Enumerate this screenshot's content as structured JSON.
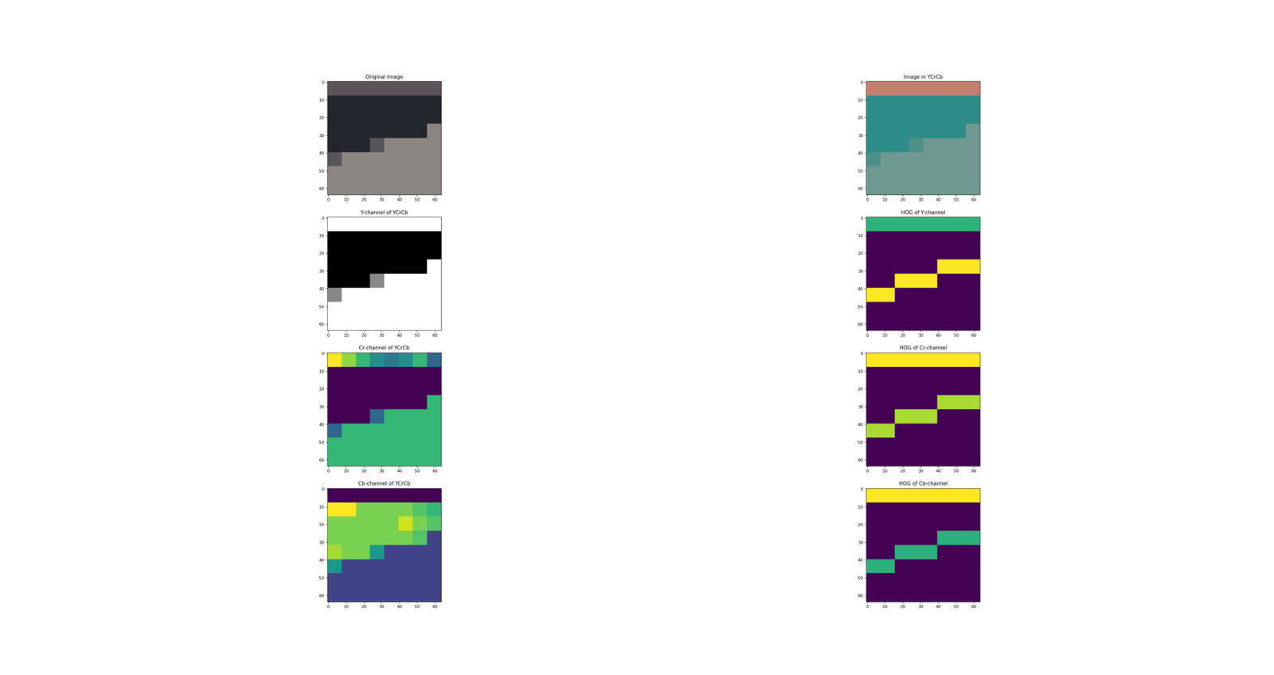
{
  "chart_data": [
    {
      "type": "image",
      "title": "Original Image",
      "xlim": [
        -0.5,
        63.5
      ],
      "ylim": [
        63.5,
        -0.5
      ],
      "xticks": [
        0,
        10,
        20,
        30,
        40,
        50,
        60
      ],
      "yticks": [
        0,
        10,
        20,
        30,
        40,
        50,
        60
      ],
      "cells": [
        [
          "#5c5458",
          "#5c5458",
          "#5c5458",
          "#5c5458",
          "#5c5458",
          "#5c5458",
          "#5c5458",
          "#5c5458"
        ],
        [
          "#23272d",
          "#23272d",
          "#23272d",
          "#23272d",
          "#23272d",
          "#23272d",
          "#23272d",
          "#23272d"
        ],
        [
          "#23272d",
          "#23272d",
          "#23272d",
          "#23272d",
          "#23272d",
          "#23272d",
          "#23272d",
          "#23272d"
        ],
        [
          "#23272d",
          "#23272d",
          "#23272d",
          "#23272d",
          "#23272d",
          "#23272d",
          "#23272d",
          "#8c8682"
        ],
        [
          "#23272d",
          "#23272d",
          "#23272d",
          "#56565a",
          "#8c8682",
          "#8c8682",
          "#8c8682",
          "#8c8682"
        ],
        [
          "#56565a",
          "#8c8682",
          "#8c8682",
          "#8c8682",
          "#8c8682",
          "#8c8682",
          "#8c8682",
          "#8c8682"
        ],
        [
          "#8c8682",
          "#8c8682",
          "#8c8682",
          "#8c8682",
          "#8c8682",
          "#8c8682",
          "#8c8682",
          "#8c8682"
        ],
        [
          "#8c8682",
          "#8c8682",
          "#8c8682",
          "#8c8682",
          "#8c8682",
          "#8c8682",
          "#8c8682",
          "#8c8682"
        ]
      ]
    },
    {
      "type": "image",
      "title": "Image in YCrCb",
      "xlim": [
        -0.5,
        63.5
      ],
      "ylim": [
        63.5,
        -0.5
      ],
      "xticks": [
        0,
        10,
        20,
        30,
        40,
        50,
        60
      ],
      "yticks": [
        0,
        10,
        20,
        30,
        40,
        50,
        60
      ],
      "cells": [
        [
          "#c4806e",
          "#c4806e",
          "#c4806e",
          "#c4806e",
          "#c4806e",
          "#c4806e",
          "#c4806e",
          "#c4806e"
        ],
        [
          "#2e8c88",
          "#2e8c88",
          "#2e8c88",
          "#2e8c88",
          "#2e8c88",
          "#2e8c88",
          "#2e8c88",
          "#2e8c88"
        ],
        [
          "#2e8c88",
          "#2e8c88",
          "#2e8c88",
          "#2e8c88",
          "#2e8c88",
          "#2e8c88",
          "#2e8c88",
          "#2e8c88"
        ],
        [
          "#2e8c88",
          "#2e8c88",
          "#2e8c88",
          "#2e8c88",
          "#2e8c88",
          "#2e8c88",
          "#2e8c88",
          "#6e9890"
        ],
        [
          "#2e8c88",
          "#2e8c88",
          "#2e8c88",
          "#4c9088",
          "#6e9890",
          "#6e9890",
          "#6e9890",
          "#6e9890"
        ],
        [
          "#4c9088",
          "#6e9890",
          "#6e9890",
          "#6e9890",
          "#6e9890",
          "#6e9890",
          "#6e9890",
          "#6e9890"
        ],
        [
          "#6e9890",
          "#6e9890",
          "#6e9890",
          "#6e9890",
          "#6e9890",
          "#6e9890",
          "#6e9890",
          "#6e9890"
        ],
        [
          "#6e9890",
          "#6e9890",
          "#6e9890",
          "#6e9890",
          "#6e9890",
          "#6e9890",
          "#6e9890",
          "#6e9890"
        ]
      ]
    },
    {
      "type": "heatmap",
      "title": "Y-channel of YCrCb",
      "color": "gray",
      "xlim": [
        -0.5,
        63.5
      ],
      "ylim": [
        63.5,
        -0.5
      ],
      "xticks": [
        0,
        10,
        20,
        30,
        40,
        50,
        60
      ],
      "yticks": [
        0,
        10,
        20,
        30,
        40,
        50,
        60
      ],
      "cells": [
        [
          0.55,
          0.55,
          0.55,
          0.55,
          0.55,
          0.55,
          0.55,
          0.55
        ],
        [
          0.12,
          0.12,
          0.12,
          0.12,
          0.12,
          0.12,
          0.12,
          0.12
        ],
        [
          0.12,
          0.12,
          0.12,
          0.12,
          0.12,
          0.12,
          0.12,
          0.12
        ],
        [
          0.12,
          0.12,
          0.12,
          0.12,
          0.12,
          0.12,
          0.12,
          0.55
        ],
        [
          0.12,
          0.12,
          0.12,
          0.35,
          0.55,
          0.55,
          0.55,
          0.55
        ],
        [
          0.35,
          0.55,
          0.55,
          0.55,
          0.55,
          0.55,
          0.55,
          0.55
        ],
        [
          0.55,
          0.55,
          0.55,
          0.55,
          0.55,
          0.55,
          0.55,
          0.55
        ],
        [
          0.55,
          0.55,
          0.55,
          0.55,
          0.55,
          0.55,
          0.55,
          0.55
        ]
      ]
    },
    {
      "type": "heatmap",
      "title": "HOG of Y-channel",
      "color": "viridis",
      "xlim": [
        -0.5,
        63.5
      ],
      "ylim": [
        63.5,
        -0.5
      ],
      "xticks": [
        0,
        10,
        20,
        30,
        40,
        50,
        60
      ],
      "yticks": [
        0,
        10,
        20,
        30,
        40,
        50,
        60
      ],
      "cells": [
        [
          0.6,
          0.6,
          0.6,
          0.6,
          0.6,
          0.6,
          0.6,
          0.6
        ],
        [
          0.05,
          0.05,
          0.05,
          0.05,
          0.05,
          0.05,
          0.05,
          0.05
        ],
        [
          0.05,
          0.05,
          0.05,
          0.05,
          0.05,
          0.05,
          0.05,
          0.05
        ],
        [
          0.05,
          0.05,
          0.05,
          0.05,
          0.05,
          0.9,
          0.9,
          0.9
        ],
        [
          0.05,
          0.05,
          0.9,
          0.9,
          0.9,
          0.05,
          0.05,
          0.05
        ],
        [
          0.9,
          0.9,
          0.05,
          0.05,
          0.05,
          0.05,
          0.05,
          0.05
        ],
        [
          0.05,
          0.05,
          0.05,
          0.05,
          0.05,
          0.05,
          0.05,
          0.05
        ],
        [
          0.05,
          0.05,
          0.05,
          0.05,
          0.05,
          0.05,
          0.05,
          0.05
        ]
      ]
    },
    {
      "type": "heatmap",
      "title": "Cr-channel of YCrCb",
      "color": "viridis",
      "xlim": [
        -0.5,
        63.5
      ],
      "ylim": [
        63.5,
        -0.5
      ],
      "xticks": [
        0,
        10,
        20,
        30,
        40,
        50,
        60
      ],
      "yticks": [
        0,
        10,
        20,
        30,
        40,
        50,
        60
      ],
      "cells": [
        [
          0.8,
          0.7,
          0.6,
          0.5,
          0.45,
          0.5,
          0.6,
          0.4
        ],
        [
          0.2,
          0.2,
          0.2,
          0.2,
          0.2,
          0.2,
          0.2,
          0.2
        ],
        [
          0.2,
          0.2,
          0.2,
          0.2,
          0.2,
          0.2,
          0.2,
          0.2
        ],
        [
          0.2,
          0.2,
          0.2,
          0.2,
          0.2,
          0.2,
          0.2,
          0.6
        ],
        [
          0.2,
          0.2,
          0.2,
          0.4,
          0.6,
          0.6,
          0.6,
          0.6
        ],
        [
          0.4,
          0.6,
          0.6,
          0.6,
          0.6,
          0.6,
          0.6,
          0.6
        ],
        [
          0.6,
          0.6,
          0.6,
          0.6,
          0.6,
          0.6,
          0.6,
          0.6
        ],
        [
          0.6,
          0.6,
          0.6,
          0.6,
          0.6,
          0.6,
          0.6,
          0.6
        ]
      ]
    },
    {
      "type": "heatmap",
      "title": "HOG of Cr-channel",
      "color": "viridis",
      "xlim": [
        -0.5,
        63.5
      ],
      "ylim": [
        63.5,
        -0.5
      ],
      "xticks": [
        0,
        10,
        20,
        30,
        40,
        50,
        60
      ],
      "yticks": [
        0,
        10,
        20,
        30,
        40,
        50,
        60
      ],
      "cells": [
        [
          0.5,
          0.5,
          0.5,
          0.5,
          0.5,
          0.5,
          0.5,
          0.5
        ],
        [
          0.1,
          0.1,
          0.1,
          0.1,
          0.1,
          0.1,
          0.1,
          0.1
        ],
        [
          0.1,
          0.1,
          0.1,
          0.1,
          0.1,
          0.1,
          0.1,
          0.1
        ],
        [
          0.1,
          0.1,
          0.1,
          0.1,
          0.1,
          0.45,
          0.45,
          0.45
        ],
        [
          0.1,
          0.1,
          0.45,
          0.45,
          0.45,
          0.1,
          0.1,
          0.1
        ],
        [
          0.45,
          0.45,
          0.1,
          0.1,
          0.1,
          0.1,
          0.1,
          0.1
        ],
        [
          0.1,
          0.1,
          0.1,
          0.1,
          0.1,
          0.1,
          0.1,
          0.1
        ],
        [
          0.1,
          0.1,
          0.1,
          0.1,
          0.1,
          0.1,
          0.1,
          0.1
        ]
      ]
    },
    {
      "type": "heatmap",
      "title": "Cb-channel of YCrCb",
      "color": "viridis",
      "xlim": [
        -0.5,
        63.5
      ],
      "ylim": [
        63.5,
        -0.5
      ],
      "xticks": [
        0,
        10,
        20,
        30,
        40,
        50,
        60
      ],
      "yticks": [
        0,
        10,
        20,
        30,
        40,
        50,
        60
      ],
      "cells": [
        [
          0.15,
          0.15,
          0.15,
          0.15,
          0.15,
          0.15,
          0.15,
          0.15
        ],
        [
          0.9,
          0.9,
          0.75,
          0.75,
          0.75,
          0.75,
          0.7,
          0.65
        ],
        [
          0.75,
          0.75,
          0.75,
          0.75,
          0.75,
          0.85,
          0.75,
          0.7
        ],
        [
          0.75,
          0.75,
          0.75,
          0.75,
          0.75,
          0.75,
          0.7,
          0.3
        ],
        [
          0.8,
          0.75,
          0.75,
          0.55,
          0.3,
          0.3,
          0.3,
          0.3
        ],
        [
          0.55,
          0.3,
          0.3,
          0.3,
          0.3,
          0.3,
          0.3,
          0.3
        ],
        [
          0.3,
          0.3,
          0.3,
          0.3,
          0.3,
          0.3,
          0.3,
          0.3
        ],
        [
          0.3,
          0.3,
          0.3,
          0.3,
          0.3,
          0.3,
          0.3,
          0.3
        ]
      ]
    },
    {
      "type": "heatmap",
      "title": "HOG of Cb-channel",
      "color": "viridis",
      "xlim": [
        -0.5,
        63.5
      ],
      "ylim": [
        63.5,
        -0.5
      ],
      "xticks": [
        0,
        10,
        20,
        30,
        40,
        50,
        60
      ],
      "yticks": [
        0,
        10,
        20,
        30,
        40,
        50,
        60
      ],
      "cells": [
        [
          0.8,
          0.8,
          0.8,
          0.8,
          0.8,
          0.8,
          0.8,
          0.8
        ],
        [
          0.1,
          0.1,
          0.1,
          0.1,
          0.1,
          0.1,
          0.1,
          0.1
        ],
        [
          0.1,
          0.1,
          0.1,
          0.1,
          0.1,
          0.1,
          0.1,
          0.1
        ],
        [
          0.1,
          0.1,
          0.1,
          0.1,
          0.1,
          0.55,
          0.55,
          0.55
        ],
        [
          0.1,
          0.1,
          0.55,
          0.55,
          0.55,
          0.1,
          0.1,
          0.1
        ],
        [
          0.55,
          0.55,
          0.1,
          0.1,
          0.1,
          0.1,
          0.1,
          0.1
        ],
        [
          0.1,
          0.1,
          0.1,
          0.1,
          0.1,
          0.1,
          0.1,
          0.1
        ],
        [
          0.1,
          0.1,
          0.1,
          0.1,
          0.1,
          0.1,
          0.1,
          0.1
        ]
      ]
    }
  ]
}
